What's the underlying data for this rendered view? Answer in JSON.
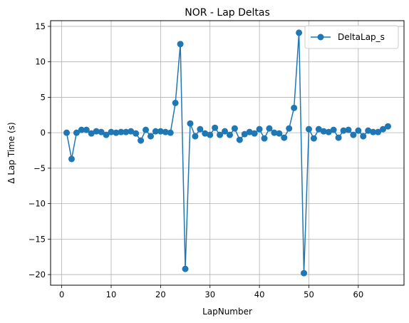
{
  "chart_data": {
    "type": "line",
    "title": "NOR - Lap Deltas",
    "xlabel": "LapNumber",
    "ylabel": "Δ Lap Time (s)",
    "xlim": [
      -2.25,
      69.25
    ],
    "ylim": [
      -21.5,
      15.8
    ],
    "xticks": [
      0,
      10,
      20,
      30,
      40,
      50,
      60
    ],
    "yticks": [
      -20,
      -15,
      -10,
      -5,
      0,
      5,
      10,
      15
    ],
    "grid": true,
    "legend_position": "top-right",
    "series": [
      {
        "name": "DeltaLap_s",
        "color": "#1f77b4",
        "marker": "circle",
        "x": [
          1,
          2,
          3,
          4,
          5,
          6,
          7,
          8,
          9,
          10,
          11,
          12,
          13,
          14,
          15,
          16,
          17,
          18,
          19,
          20,
          21,
          22,
          23,
          24,
          25,
          26,
          27,
          28,
          29,
          30,
          31,
          32,
          33,
          34,
          35,
          36,
          37,
          38,
          39,
          40,
          41,
          42,
          43,
          44,
          45,
          46,
          47,
          48,
          49,
          50,
          51,
          52,
          53,
          54,
          55,
          56,
          57,
          58,
          59,
          60,
          61,
          62,
          63,
          64,
          65,
          66
        ],
        "values": [
          0.0,
          -3.7,
          0.0,
          0.4,
          0.4,
          -0.1,
          0.2,
          0.1,
          -0.3,
          0.1,
          0.0,
          0.1,
          0.1,
          0.2,
          -0.1,
          -1.1,
          0.4,
          -0.5,
          0.2,
          0.2,
          0.1,
          0.0,
          4.2,
          12.5,
          -19.2,
          1.3,
          -0.5,
          0.5,
          -0.1,
          -0.3,
          0.7,
          -0.3,
          0.2,
          -0.3,
          0.6,
          -1.0,
          -0.2,
          0.1,
          -0.1,
          0.5,
          -0.8,
          0.6,
          0.0,
          -0.1,
          -0.7,
          0.6,
          3.5,
          14.1,
          -19.8,
          0.5,
          -0.8,
          0.5,
          0.2,
          0.1,
          0.4,
          -0.7,
          0.3,
          0.4,
          -0.3,
          0.3,
          -0.5,
          0.3,
          0.1,
          0.1,
          0.5,
          0.9
        ]
      }
    ]
  }
}
